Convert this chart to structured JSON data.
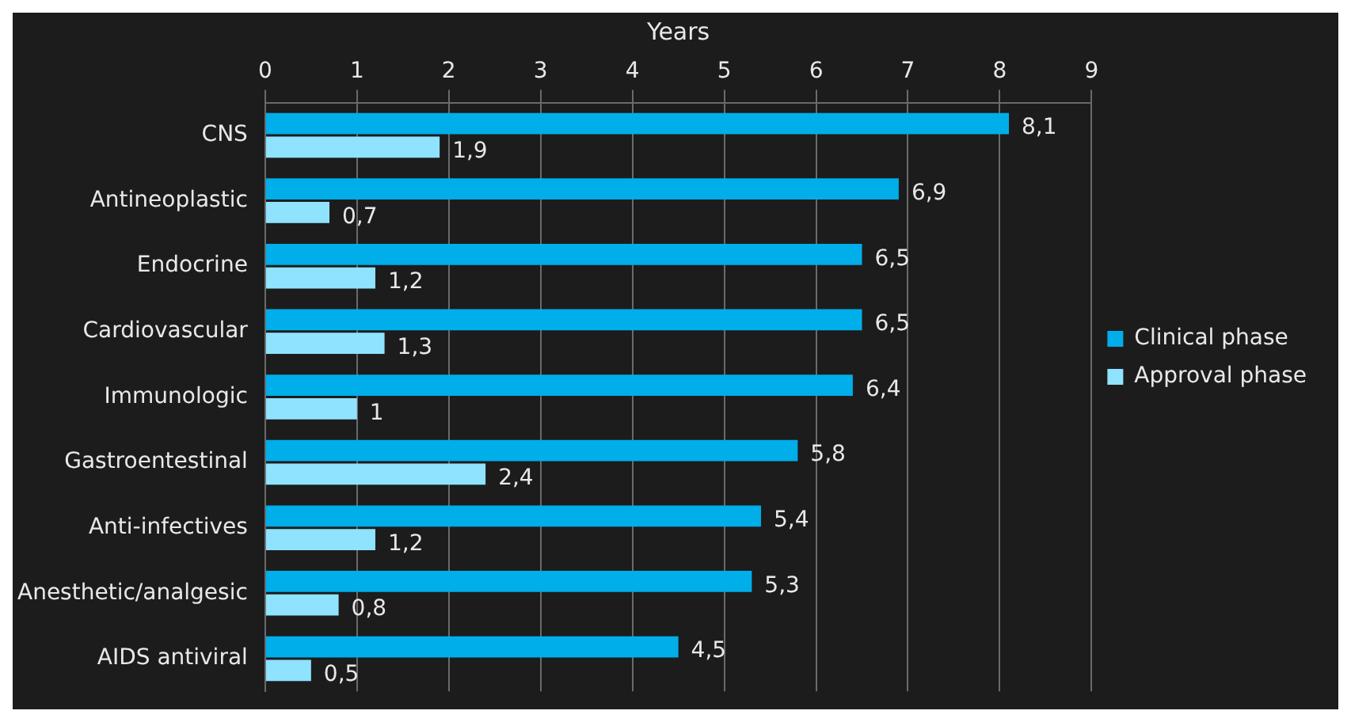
{
  "chart_data": {
    "type": "bar",
    "orientation": "horizontal",
    "xlabel": "Years",
    "categories": [
      "CNS",
      "Antineoplastic",
      "Endocrine",
      "Cardiovascular",
      "Immunologic",
      "Gastroentestinal",
      "Anti-infectives",
      "Anesthetic/analgesic",
      "AIDS antiviral"
    ],
    "series": [
      {
        "name": "Clinical phase",
        "color": "#00aeea",
        "values": [
          8.1,
          6.9,
          6.5,
          6.5,
          6.4,
          5.8,
          5.4,
          5.3,
          4.5
        ],
        "value_labels": [
          "8,1",
          "6,9",
          "6,5",
          "6,5",
          "6,4",
          "5,8",
          "5,4",
          "5,3",
          "4,5"
        ]
      },
      {
        "name": "Approval phase",
        "color": "#8fe3ff",
        "values": [
          1.9,
          0.7,
          1.2,
          1.3,
          1,
          2.4,
          1.2,
          0.8,
          0.5
        ],
        "value_labels": [
          "1,9",
          "0,7",
          "1,2",
          "1,3",
          "1",
          "2,4",
          "1,2",
          "0,8",
          "0,5"
        ]
      }
    ],
    "xlim": [
      0,
      9
    ],
    "xticks": [
      0,
      1,
      2,
      3,
      4,
      5,
      6,
      7,
      8,
      9
    ],
    "grid": "x",
    "legend": "right"
  }
}
